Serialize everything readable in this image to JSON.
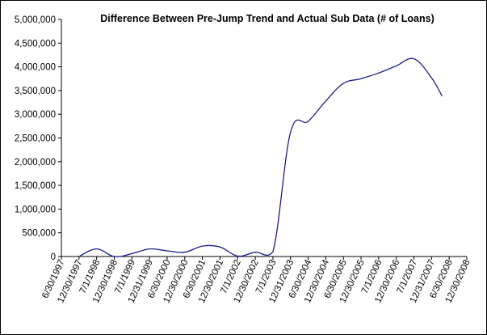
{
  "chart_data": {
    "type": "line",
    "title": "Difference Between Pre-Jump Trend and Actual Sub Data (# of Loans)",
    "xlabel": "",
    "ylabel": "",
    "ylim": [
      0,
      5000000
    ],
    "y_ticks": [
      "0",
      "500,000",
      "1,000,000",
      "1,500,000",
      "2,000,000",
      "2,500,000",
      "3,000,000",
      "3,500,000",
      "4,000,000",
      "4,500,000",
      "5,000,000"
    ],
    "x_ticks": [
      "6/30/1997",
      "12/30/1997",
      "7/1/1998",
      "12/30/1998",
      "7/1/1999",
      "12/31/1999",
      "6/30/2000",
      "12/30/2000",
      "6/30/2001",
      "12/30/2001",
      "7/1/2002",
      "12/30/2002",
      "7/1/2003",
      "12/31/2003",
      "6/30/2004",
      "12/30/2004",
      "6/30/2005",
      "12/30/2005",
      "7/1/2006",
      "12/30/2006",
      "7/1/2007",
      "12/31/2007",
      "6/30/2008",
      "12/30/2008"
    ],
    "gridlines": false,
    "legend": "none",
    "line_color": "#1c1c8c",
    "series": [
      {
        "x": [
          "12/30/1997",
          "7/1/1998",
          "12/30/1998",
          "7/1/1999",
          "12/31/1999",
          "6/30/2000",
          "12/30/2000",
          "6/30/2001",
          "12/30/2001",
          "7/1/2002",
          "12/30/2002",
          "7/1/2003",
          "12/31/2003",
          "6/30/2004",
          "12/30/2004",
          "6/30/2005",
          "12/30/2005",
          "7/1/2006",
          "12/30/2006",
          "7/1/2007",
          "12/31/2007"
        ],
        "values": [
          0,
          160000,
          0,
          60000,
          160000,
          120000,
          90000,
          220000,
          200000,
          10000,
          90000,
          100000,
          2620000,
          2850000,
          3280000,
          3650000,
          3750000,
          3870000,
          4020000,
          4170000,
          3770000
        ]
      }
    ],
    "series_tail": {
      "x_fraction_of_interval": 0.6,
      "value": 3380000
    }
  }
}
